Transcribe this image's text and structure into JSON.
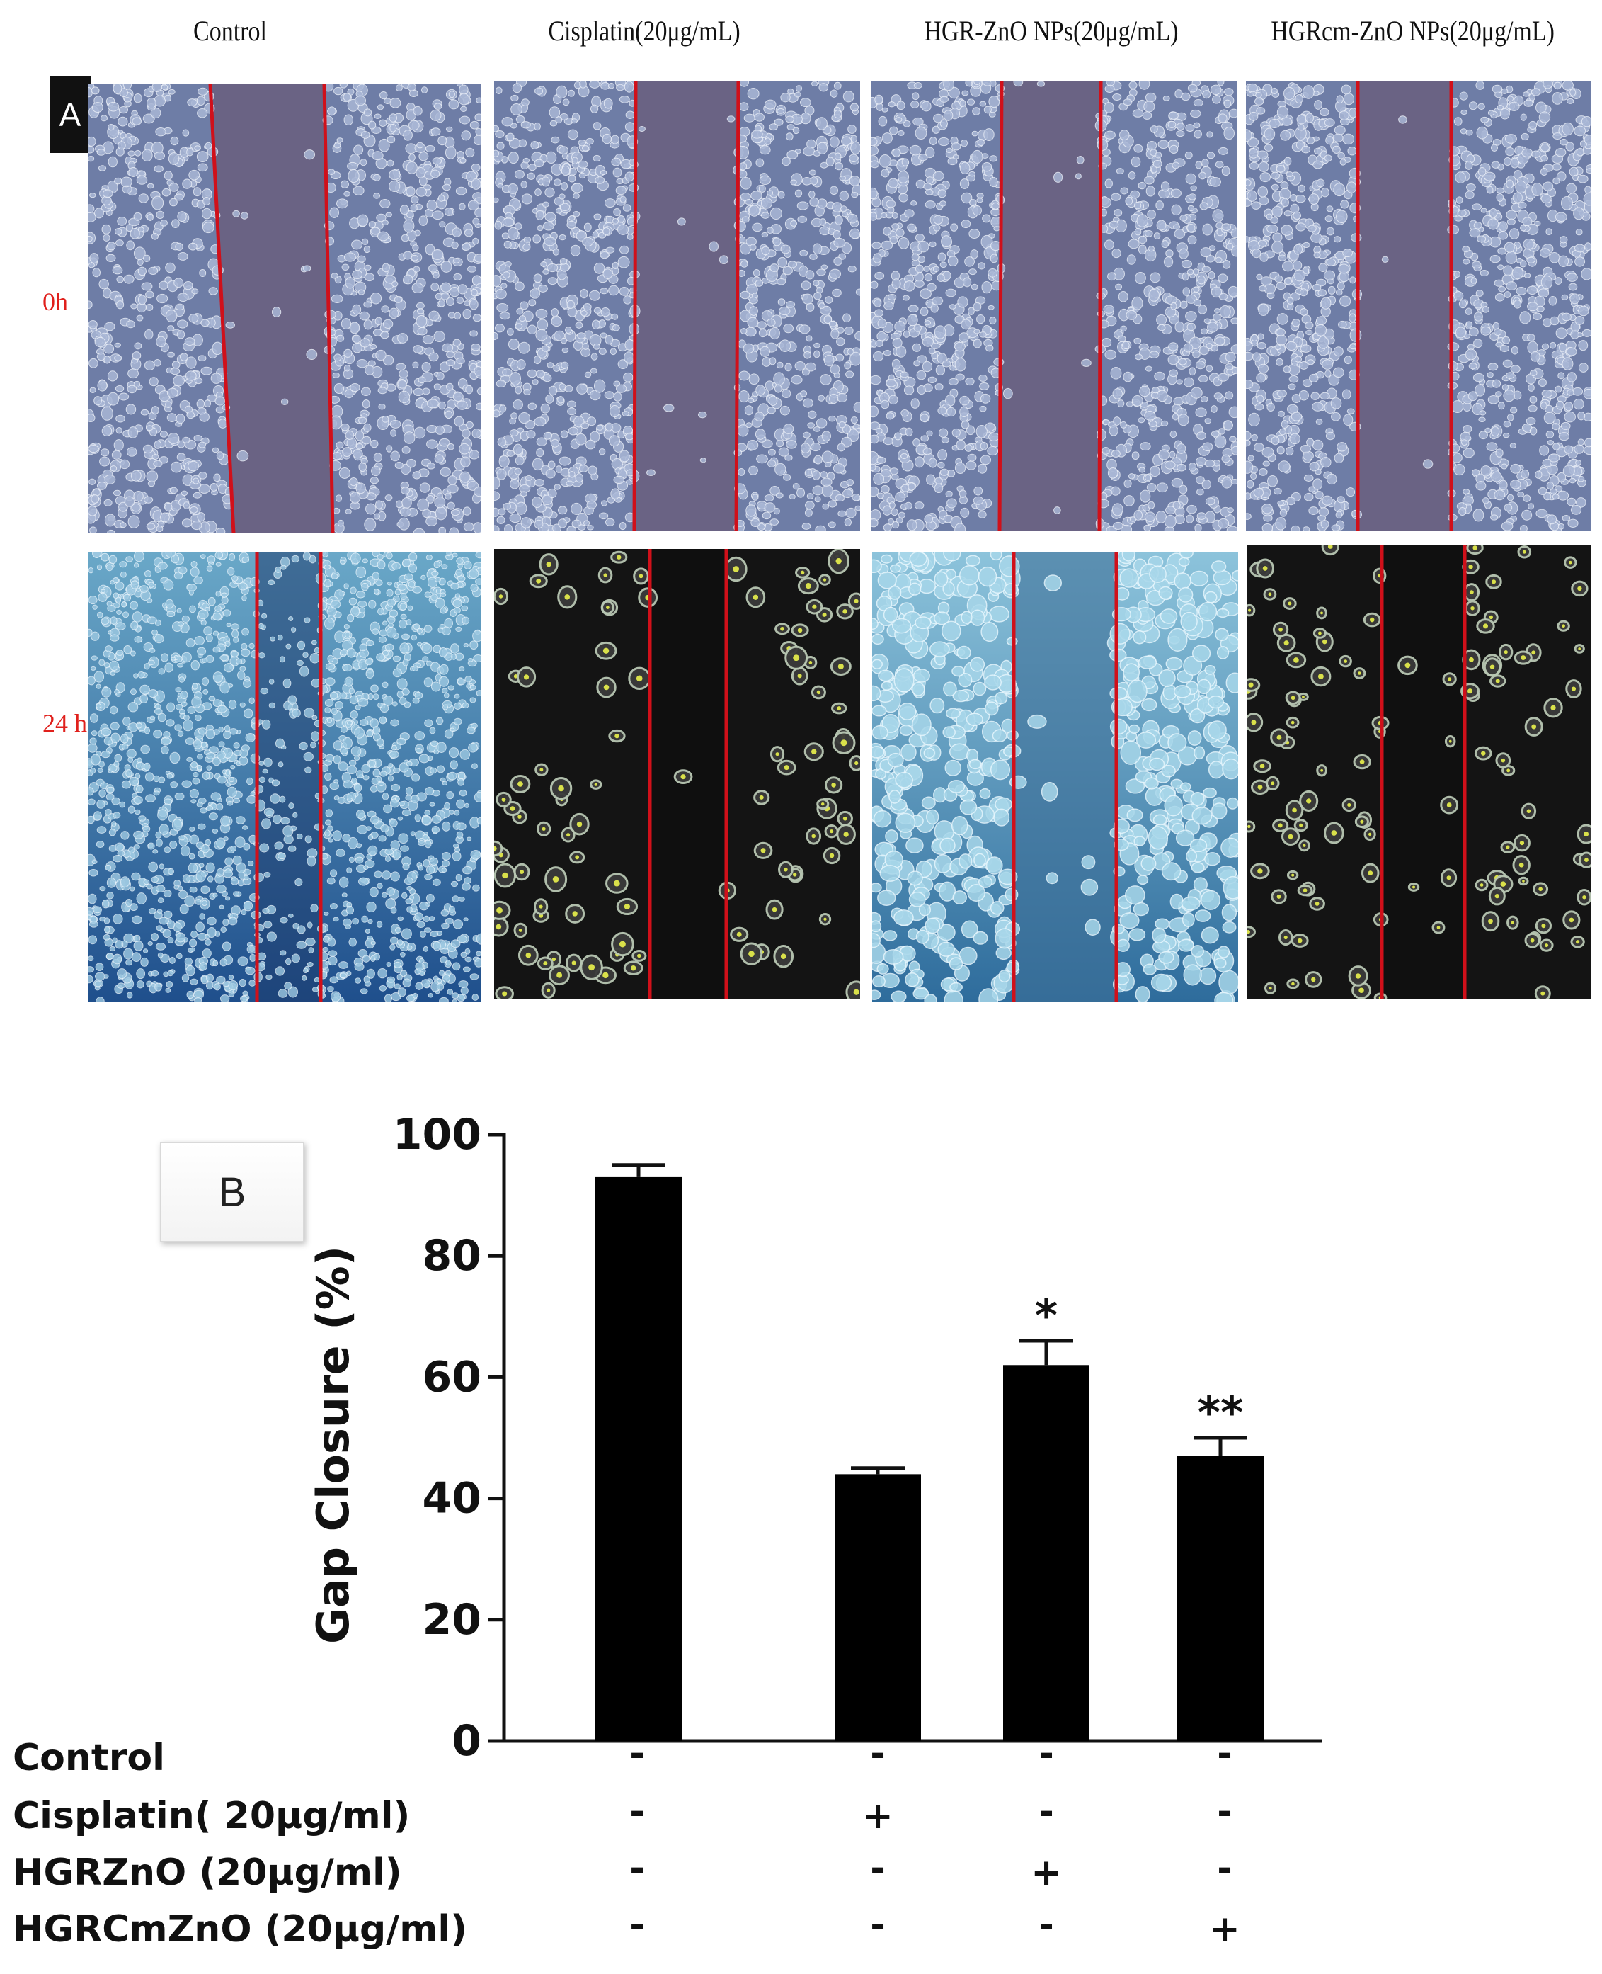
{
  "panel_a": {
    "tag": "A",
    "column_titles": [
      "Control",
      "Cisplatin(20μg/mL)",
      "HGR-ZnO NPs(20μg/mL)",
      "HGRcm-ZnO NPs(20μg/mL)"
    ],
    "row_labels": [
      "0h",
      "24 h"
    ]
  },
  "panel_b": {
    "tag": "B",
    "condition_labels": [
      "Control",
      "Cisplatin( 20μg/ml)",
      "HGRZnO (20μg/ml)",
      "HGRCmZnO (20μg/ml)"
    ],
    "condition_signs": [
      [
        "-",
        "-",
        "-",
        "-"
      ],
      [
        "-",
        "+",
        "-",
        "-"
      ],
      [
        "-",
        "-",
        "+",
        "-"
      ],
      [
        "-",
        "-",
        "-",
        "+"
      ]
    ]
  },
  "chart_data": {
    "type": "bar",
    "categories": [
      "Control",
      "Cisplatin",
      "HGRZnO",
      "HGRCmZnO"
    ],
    "values": [
      93,
      44,
      62,
      47
    ],
    "errors": [
      2,
      1,
      4,
      3
    ],
    "significance": [
      "",
      "",
      "*",
      "**"
    ],
    "ylabel": "Gap Closure (%)",
    "xlabel": "",
    "ylim": [
      0,
      100
    ],
    "yticks": [
      0,
      20,
      40,
      60,
      80,
      100
    ],
    "bar_color": "#000000",
    "grid": false
  },
  "colors": {
    "wound_line": "#d0101a",
    "row_label": "#e0201c",
    "phase_0h": "#6e7da6",
    "phase_24h_bright": "#3f7fa8",
    "phase_24h_dark": "#141414"
  }
}
